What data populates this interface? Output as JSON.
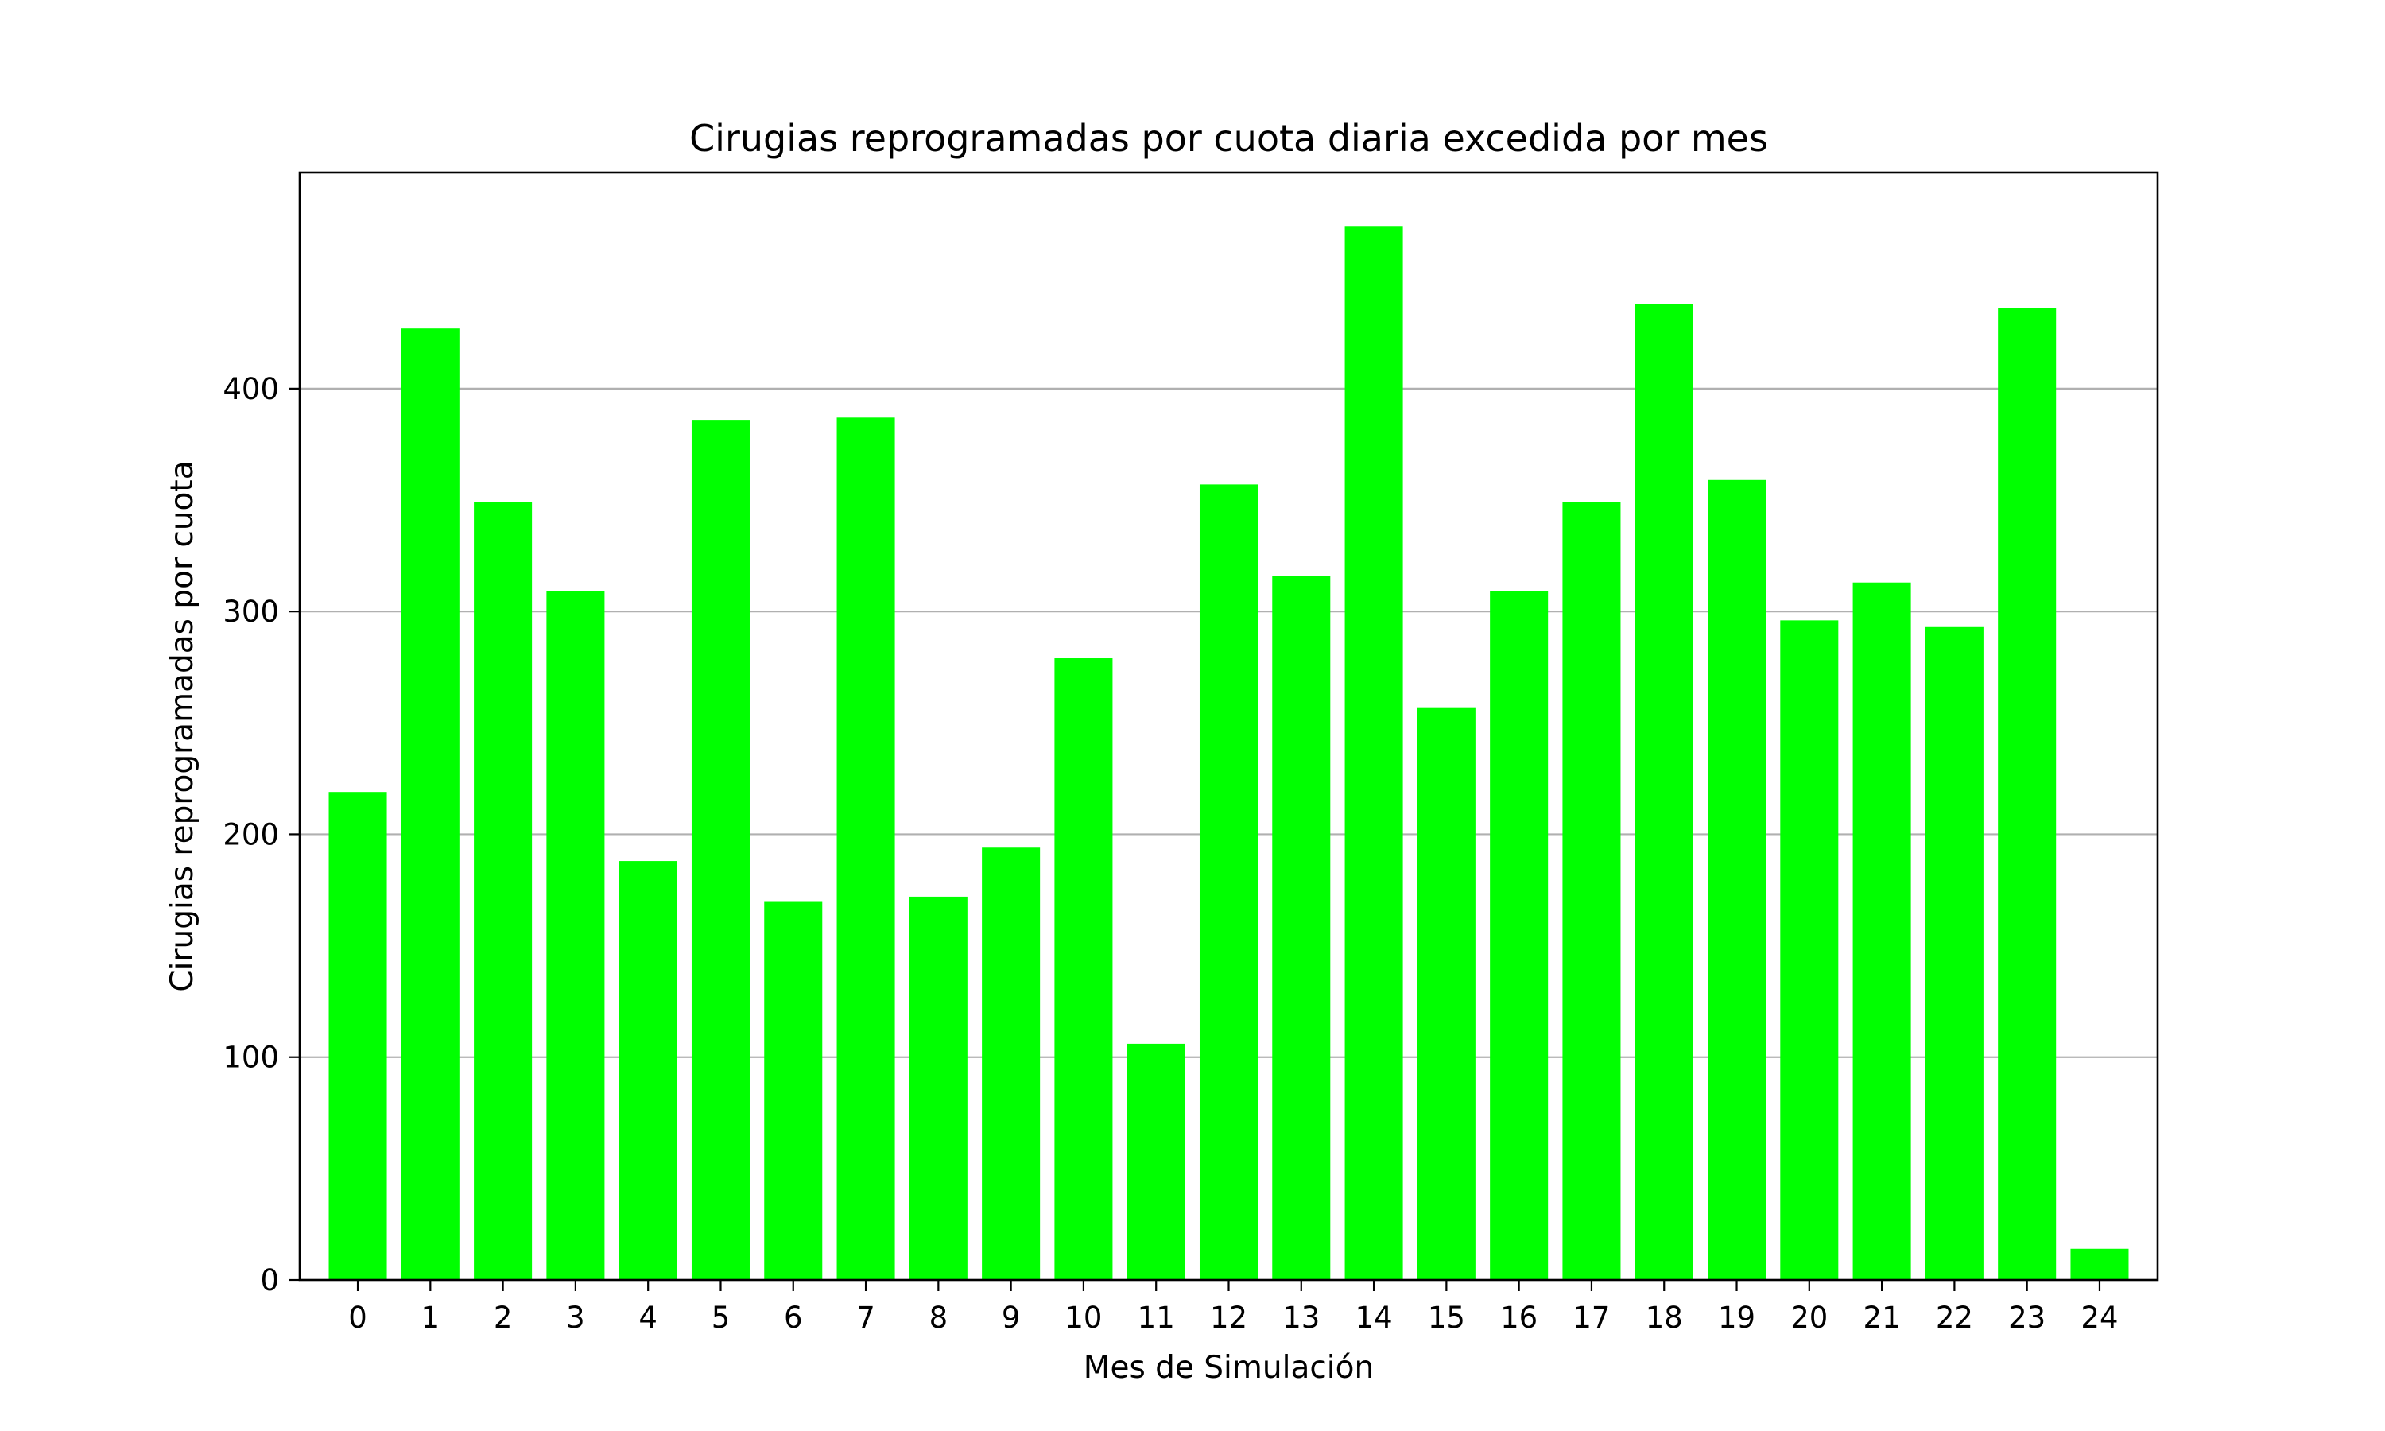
{
  "chart_data": {
    "type": "bar",
    "title": "Cirugias reprogramadas por cuota diaria excedida por mes",
    "xlabel": "Mes de Simulación",
    "ylabel": "Cirugias reprogramadas por cuota",
    "categories": [
      "0",
      "1",
      "2",
      "3",
      "4",
      "5",
      "6",
      "7",
      "8",
      "9",
      "10",
      "11",
      "12",
      "13",
      "14",
      "15",
      "16",
      "17",
      "18",
      "19",
      "20",
      "21",
      "22",
      "23",
      "24"
    ],
    "values": [
      219,
      427,
      349,
      309,
      188,
      386,
      170,
      387,
      172,
      194,
      279,
      106,
      357,
      316,
      473,
      257,
      309,
      349,
      438,
      359,
      296,
      313,
      293,
      436,
      14
    ],
    "ylim": [
      0,
      497
    ],
    "yticks": [
      0,
      100,
      200,
      300,
      400
    ],
    "ytick_labels": [
      "0",
      "100",
      "200",
      "300",
      "400"
    ],
    "grid": "y",
    "bar_color": "#00ff00"
  }
}
